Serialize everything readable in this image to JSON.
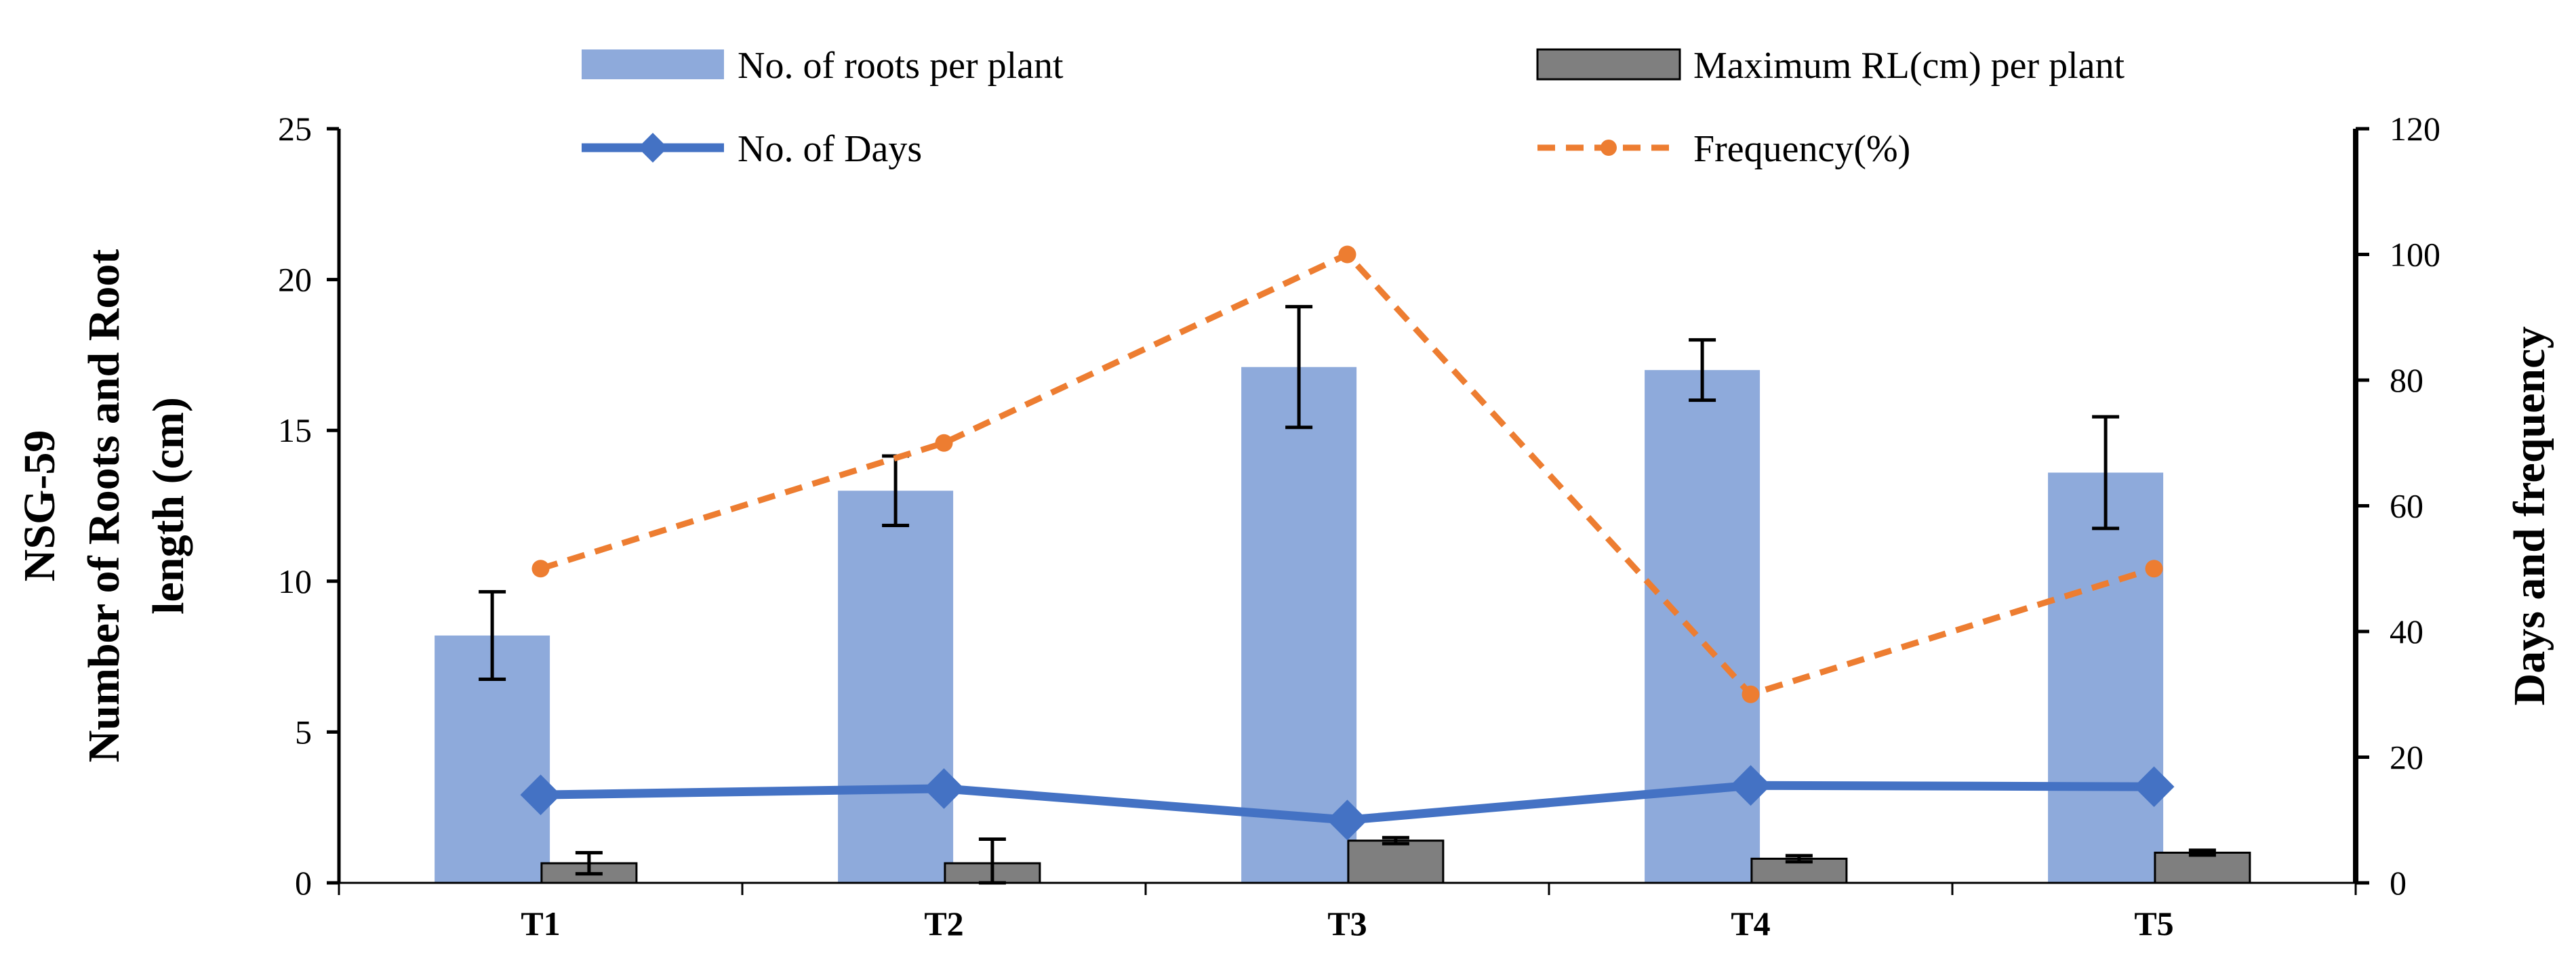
{
  "chart_data": {
    "type": "bar",
    "categories": [
      "T1",
      "T2",
      "T3",
      "T4",
      "T5"
    ],
    "series": [
      {
        "name": "No. of roots per plant",
        "kind": "bar",
        "axis": "left",
        "color": "#8eaadb",
        "values": [
          8.2,
          13.0,
          17.1,
          17.0,
          13.6
        ],
        "errors": [
          1.45,
          1.15,
          2.0,
          1.0,
          1.85
        ]
      },
      {
        "name": "Maximum RL(cm) per plant",
        "kind": "bar",
        "axis": "left",
        "color": "#7f7f7f",
        "values": [
          0.65,
          0.65,
          1.4,
          0.8,
          1.0
        ],
        "errors": [
          0.35,
          0.8,
          0.1,
          0.1,
          0.08
        ]
      },
      {
        "name": "No. of Days",
        "kind": "line",
        "axis": "right",
        "color": "#4472c4",
        "values": [
          14,
          15,
          10,
          15.5,
          15.3
        ]
      },
      {
        "name": "Frequency(%)",
        "kind": "line-dashed",
        "axis": "right",
        "color": "#ed7d31",
        "values": [
          50,
          70,
          100,
          30,
          50
        ]
      }
    ],
    "ylabel_lines": [
      "NSG-59",
      "Number of Roots and Root",
      "length (cm)"
    ],
    "y2label": "Days and frequency",
    "ylim": [
      0,
      25
    ],
    "yticks": [
      0,
      5,
      10,
      15,
      20,
      25
    ],
    "y2lim": [
      0,
      120
    ],
    "y2ticks": [
      0,
      20,
      40,
      60,
      80,
      100,
      120
    ],
    "grid": false,
    "legend_position": "top"
  }
}
